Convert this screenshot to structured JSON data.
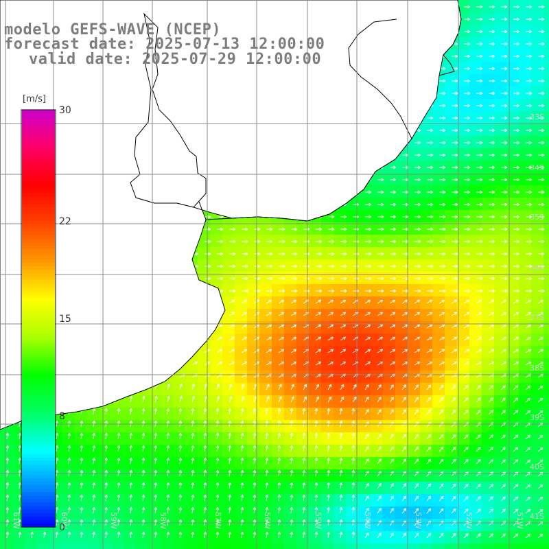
{
  "header": {
    "model_line": "modelo GEFS-WAVE (NCEP)",
    "forecast_line": "forecast date: 2025-07-13 12:00:00",
    "valid_line": "valid date: 2025-07-29 12:00:00"
  },
  "colorbar": {
    "unit": "[m/s]",
    "ticks": [
      "30",
      "22",
      "15",
      "8",
      "0"
    ],
    "tick_values": [
      30,
      22,
      15,
      8,
      0
    ],
    "range": [
      0,
      30
    ],
    "colors": [
      "#0000ff",
      "#0088ff",
      "#00ffff",
      "#00ff66",
      "#00ff00",
      "#aaff00",
      "#ffff00",
      "#ff9900",
      "#ff4400",
      "#ff0000",
      "#ff0066",
      "#cc00cc"
    ]
  },
  "map": {
    "lat_labels": [
      "33S",
      "34S",
      "35S",
      "36S",
      "37S",
      "38S",
      "39S",
      "40S",
      "41S"
    ],
    "lon_labels": [
      "61W",
      "60W",
      "59W",
      "58W",
      "57W",
      "56W",
      "55W",
      "54W",
      "53W",
      "52W",
      "51W"
    ],
    "land_color": "#ffffff",
    "grid_color": "#888888",
    "arrow_color": "#ffffff"
  }
}
